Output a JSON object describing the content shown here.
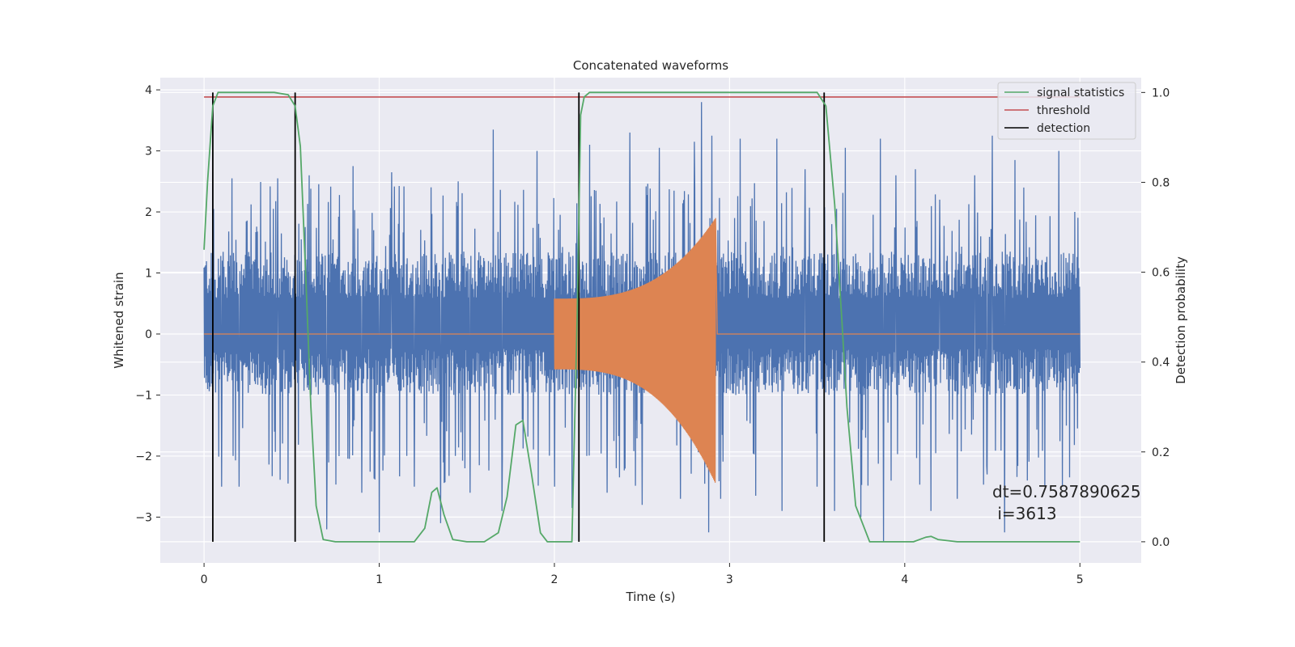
{
  "chart_data": {
    "type": "line",
    "title": "Concatenated waveforms",
    "xlabel": "Time (s)",
    "ylabel": "Whitened strain",
    "y2label": "Detection probability",
    "xlim": [
      -0.25,
      5.35
    ],
    "ylim": [
      -3.75,
      4.2
    ],
    "y2lim": [
      -0.047,
      1.033
    ],
    "xticks": [
      0,
      1,
      2,
      3,
      4,
      5
    ],
    "yticks": [
      -3,
      -2,
      -1,
      0,
      1,
      2,
      3,
      4
    ],
    "y2ticks": [
      0.0,
      0.2,
      0.4,
      0.6,
      0.8,
      1.0
    ],
    "grid": true,
    "legend_position": "top-right",
    "background": "#eaeaf2",
    "series": [
      {
        "name": "",
        "axis": "left",
        "color": "#4c72b0",
        "kind": "noise",
        "x_range": [
          0,
          5
        ],
        "band": [
          -1.0,
          1.35
        ],
        "peaks": [
          [
            0.05,
            2.65
          ],
          [
            0.1,
            -2.5
          ],
          [
            0.16,
            2.55
          ],
          [
            0.2,
            -2.5
          ],
          [
            0.42,
            2.55
          ],
          [
            0.48,
            -2.45
          ],
          [
            0.6,
            2.6
          ],
          [
            0.7,
            -3.2
          ],
          [
            0.85,
            2.75
          ],
          [
            0.9,
            -2.6
          ],
          [
            1.0,
            -3.25
          ],
          [
            1.07,
            2.65
          ],
          [
            1.2,
            -2.5
          ],
          [
            1.35,
            -3.1
          ],
          [
            1.45,
            2.5
          ],
          [
            1.52,
            -2.6
          ],
          [
            1.65,
            3.35
          ],
          [
            1.7,
            -2.9
          ],
          [
            1.9,
            3.0
          ],
          [
            2.0,
            -2.5
          ],
          [
            2.1,
            -2.85
          ],
          [
            2.2,
            3.1
          ],
          [
            2.3,
            -2.6
          ],
          [
            2.43,
            3.3
          ],
          [
            2.5,
            -2.8
          ],
          [
            2.6,
            3.05
          ],
          [
            2.72,
            -2.7
          ],
          [
            2.8,
            3.15
          ],
          [
            2.84,
            3.8
          ],
          [
            2.88,
            -3.25
          ],
          [
            2.9,
            3.25
          ],
          [
            2.95,
            -2.7
          ],
          [
            3.06,
            3.2
          ],
          [
            3.15,
            -2.65
          ],
          [
            3.27,
            3.2
          ],
          [
            3.3,
            -2.9
          ],
          [
            3.43,
            2.7
          ],
          [
            3.5,
            -2.5
          ],
          [
            3.6,
            -2.9
          ],
          [
            3.66,
            3.05
          ],
          [
            3.75,
            -3.0
          ],
          [
            3.86,
            3.2
          ],
          [
            3.88,
            -3.4
          ],
          [
            3.95,
            2.6
          ],
          [
            4.06,
            2.7
          ],
          [
            4.15,
            -2.9
          ],
          [
            4.2,
            2.2
          ],
          [
            4.3,
            -2.7
          ],
          [
            4.4,
            2.6
          ],
          [
            4.47,
            -2.3
          ],
          [
            4.5,
            3.25
          ],
          [
            4.57,
            -3.25
          ],
          [
            4.63,
            2.85
          ],
          [
            4.7,
            -2.4
          ],
          [
            4.8,
            -2.5
          ],
          [
            4.88,
            3.0
          ],
          [
            4.9,
            -2.5
          ],
          [
            4.97,
            2.0
          ]
        ]
      },
      {
        "name": "",
        "axis": "left",
        "color": "#dd8452",
        "kind": "chirp",
        "x_range": [
          0,
          5
        ],
        "chirp_start": 2.0,
        "chirp_end": 2.92,
        "amp_start": 0.58,
        "amp_end_upper": 1.9,
        "amp_end_lower": -2.45
      },
      {
        "name": "signal statistics",
        "axis": "right",
        "color": "#55a868",
        "x": [
          0,
          0.02,
          0.05,
          0.08,
          0.12,
          0.4,
          0.48,
          0.52,
          0.55,
          0.58,
          0.61,
          0.64,
          0.68,
          0.75,
          1.2,
          1.26,
          1.3,
          1.33,
          1.37,
          1.42,
          1.5,
          1.6,
          1.68,
          1.73,
          1.78,
          1.82,
          1.87,
          1.92,
          1.96,
          2.1,
          2.13,
          2.15,
          2.17,
          2.2,
          2.3,
          3.5,
          3.55,
          3.6,
          3.64,
          3.67,
          3.72,
          3.8,
          4.05,
          4.12,
          4.15,
          4.19,
          4.3,
          5.0
        ],
        "values": [
          0.65,
          0.8,
          0.97,
          1.0,
          1.0,
          1.0,
          0.995,
          0.97,
          0.88,
          0.6,
          0.3,
          0.08,
          0.005,
          0.0,
          0.0,
          0.03,
          0.11,
          0.12,
          0.06,
          0.005,
          0.0,
          0.0,
          0.02,
          0.1,
          0.26,
          0.27,
          0.15,
          0.02,
          0.0,
          0.0,
          0.5,
          0.95,
          0.99,
          1.0,
          1.0,
          1.0,
          0.97,
          0.75,
          0.5,
          0.3,
          0.08,
          0.0,
          0.0,
          0.01,
          0.012,
          0.005,
          0.0,
          0.0
        ]
      },
      {
        "name": "threshold",
        "axis": "right",
        "color": "#c44e52",
        "x": [
          0,
          5
        ],
        "values": [
          0.99,
          0.99
        ]
      },
      {
        "name": "detection",
        "axis": "right",
        "color": "#000000",
        "kind": "vlines",
        "x": [
          0.05,
          0.52,
          2.14,
          3.54
        ],
        "ymin": 0.0,
        "ymax": 1.0
      }
    ],
    "annotation": {
      "line1": "dt=0.7587890625",
      "line2": " i=3613",
      "x": 4.5,
      "y": -2.6
    }
  }
}
